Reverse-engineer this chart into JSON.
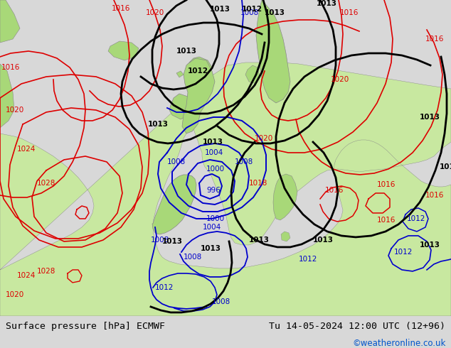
{
  "title_left": "Surface pressure [hPa] ECMWF",
  "title_right": "Tu 14-05-2024 12:00 UTC (12+96)",
  "watermark": "©weatheronline.co.uk",
  "ocean_color": "#e8e8f0",
  "land_color": "#a8d878",
  "land_color2": "#c8e8a0",
  "gray_land": "#b8b8b8",
  "bottom_bar_color": "#d8d8d8",
  "text_color_black": "#000000",
  "text_color_red": "#dd0000",
  "text_color_blue": "#0000cc",
  "text_color_link": "#0055cc"
}
